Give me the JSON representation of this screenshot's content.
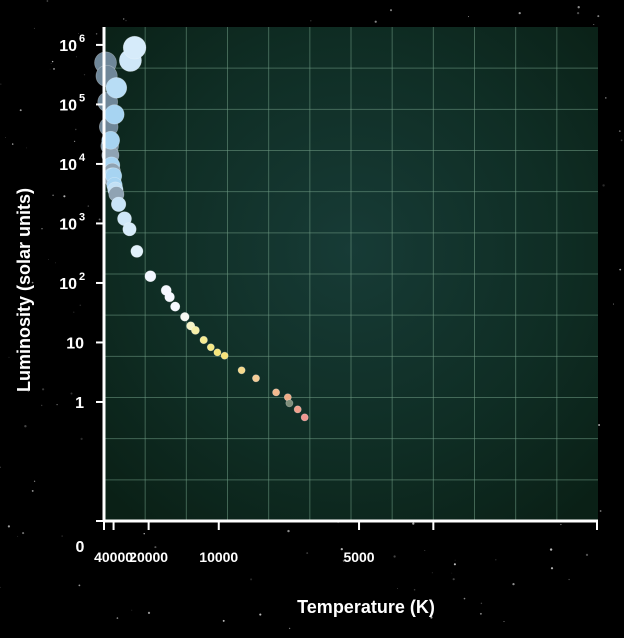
{
  "chart_data": {
    "type": "scatter",
    "title": "",
    "xlabel": "Temperature (K)",
    "ylabel": "Luminosity (solar units)",
    "x_scale": "reciprocal",
    "y_scale": "log",
    "xlim": [
      55000,
      2700
    ],
    "ylim": [
      0.01,
      2000000
    ],
    "grid": true,
    "x_ticks": [
      {
        "value": 40000,
        "label": "40000"
      },
      {
        "value": 20000,
        "label": "20000"
      },
      {
        "value": 10000,
        "label": "10000"
      },
      {
        "value": 5000,
        "label": "5000"
      }
    ],
    "y_ticks": [
      {
        "value": 1,
        "label": "1",
        "sup": ""
      },
      {
        "value": 10,
        "label": "10",
        "sup": ""
      },
      {
        "value": 100,
        "label": "10",
        "sup": "2"
      },
      {
        "value": 1000,
        "label": "10",
        "sup": "3"
      },
      {
        "value": 10000,
        "label": "10",
        "sup": "4"
      },
      {
        "value": 100000,
        "label": "10",
        "sup": "5"
      },
      {
        "value": 1000000,
        "label": "10",
        "sup": "6"
      }
    ],
    "zero_label": "0",
    "points": [
      {
        "x": 52000,
        "y": 500000,
        "color": "#6f8799"
      },
      {
        "x": 50000,
        "y": 300000,
        "color": "#6f8799"
      },
      {
        "x": 48000,
        "y": 110000,
        "color": "#6f8799"
      },
      {
        "x": 46500,
        "y": 42000,
        "color": "#6f8799"
      },
      {
        "x": 45000,
        "y": 20000,
        "color": "#7d94a6"
      },
      {
        "x": 44000,
        "y": 14000,
        "color": "#8fa3b3"
      },
      {
        "x": 43500,
        "y": 25000,
        "color": "#a7d4f2"
      },
      {
        "x": 42500,
        "y": 9500,
        "color": "#a7d4f2"
      },
      {
        "x": 41500,
        "y": 7500,
        "color": "#8fa3b3"
      },
      {
        "x": 42000,
        "y": 6300,
        "color": "#a7d4f2"
      },
      {
        "x": 40500,
        "y": 5300,
        "color": "#8fa3b3"
      },
      {
        "x": 39800,
        "y": 6300,
        "color": "#a7d4f2"
      },
      {
        "x": 39000,
        "y": 4400,
        "color": "#a7d4f2"
      },
      {
        "x": 38000,
        "y": 3700,
        "color": "#c2e0f5"
      },
      {
        "x": 37000,
        "y": 3100,
        "color": "#8fa3b3"
      },
      {
        "x": 39000,
        "y": 68000,
        "color": "#a7d4f2"
      },
      {
        "x": 37000,
        "y": 190000,
        "color": "#b8ddf5"
      },
      {
        "x": 35000,
        "y": 2100,
        "color": "#c8e4f7"
      },
      {
        "x": 30500,
        "y": 1200,
        "color": "#cfe7f8"
      },
      {
        "x": 27500,
        "y": 800,
        "color": "#d6ebfa"
      },
      {
        "x": 27000,
        "y": 550000,
        "color": "#cfe7f8"
      },
      {
        "x": 25000,
        "y": 900000,
        "color": "#d6ebfa"
      },
      {
        "x": 24000,
        "y": 340,
        "color": "#e2f1fb"
      },
      {
        "x": 19500,
        "y": 130,
        "color": "#f2f6ff"
      },
      {
        "x": 16000,
        "y": 75,
        "color": "#f5f8ff"
      },
      {
        "x": 15400,
        "y": 58,
        "color": "#f5f8ff"
      },
      {
        "x": 14500,
        "y": 40,
        "color": "#f5f8ff"
      },
      {
        "x": 13200,
        "y": 27,
        "color": "#f8f8f3"
      },
      {
        "x": 12500,
        "y": 19,
        "color": "#f6f3c6"
      },
      {
        "x": 12000,
        "y": 16,
        "color": "#f6efa8"
      },
      {
        "x": 11200,
        "y": 11,
        "color": "#f6ec92"
      },
      {
        "x": 10600,
        "y": 8.3,
        "color": "#f6ea86"
      },
      {
        "x": 10100,
        "y": 6.8,
        "color": "#f6e67a"
      },
      {
        "x": 9600,
        "y": 6,
        "color": "#f6e27a"
      },
      {
        "x": 8600,
        "y": 3.4,
        "color": "#f5d98c"
      },
      {
        "x": 7900,
        "y": 2.5,
        "color": "#f5cc96"
      },
      {
        "x": 7100,
        "y": 1.45,
        "color": "#f2b98e"
      },
      {
        "x": 6700,
        "y": 1.2,
        "color": "#f0ad88"
      },
      {
        "x": 6650,
        "y": 0.95,
        "color": "#7f8e7a"
      },
      {
        "x": 6400,
        "y": 0.75,
        "color": "#f0a08c"
      },
      {
        "x": 6200,
        "y": 0.55,
        "color": "#ee9690"
      }
    ]
  }
}
